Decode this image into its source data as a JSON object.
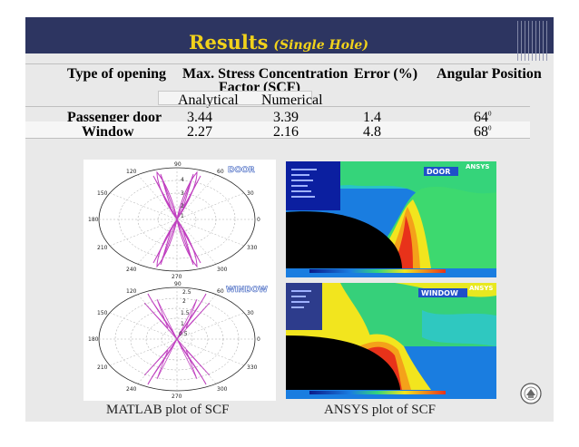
{
  "title": {
    "main": "Results",
    "sub": "(Single Hole)"
  },
  "table": {
    "headers": {
      "type": "Type of opening",
      "scf": "Max. Stress Concentration",
      "scf_line2": "Factor (SCF)",
      "analytical": "Analytical",
      "numerical": "Numerical",
      "error": "Error (%)",
      "angle": "Angular Position"
    },
    "rows": [
      {
        "type": "Passenger door",
        "analytical": "3.44",
        "numerical": "3.39",
        "error": "1.4",
        "angle": "64",
        "angle_sup": "0"
      },
      {
        "type": "Window",
        "analytical": "2.27",
        "numerical": "2.16",
        "error": "4.8",
        "angle": "68",
        "angle_sup": "0"
      }
    ]
  },
  "plots": {
    "door_label": "DOOR",
    "window_label": "WINDOW",
    "ansys_label": "ANSYS",
    "polar_angle_labels": [
      "90",
      "60",
      "30",
      "0",
      "330",
      "300",
      "270",
      "240",
      "210",
      "180",
      "150",
      "120"
    ],
    "door_radial_labels": [
      "4",
      "3",
      "2",
      "1"
    ],
    "window_radial_labels": [
      "2.5",
      "2",
      "1.5",
      "1",
      "0.5"
    ]
  },
  "captions": {
    "matlab": "MATLAB plot of SCF",
    "ansys": "ANSYS plot of SCF"
  }
}
